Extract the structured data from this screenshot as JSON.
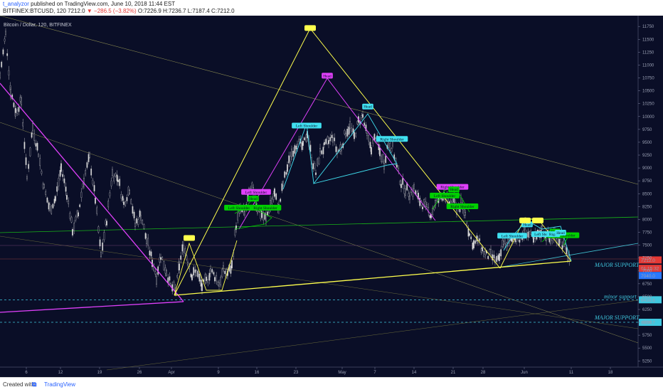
{
  "header": {
    "author": "t_analyzor",
    "published": "published on TradingView.com, June 10, 2018 11:44 EST",
    "symbol": "BITFINEX:BTCUSD, 120",
    "last": "7212.0",
    "change": "−286.5 (−3.82%)",
    "ohlc": "O:7226.9 H:7236.7 L:7187.4 C:7212.0"
  },
  "chart_title": "Bitcoin / Dollar, 120, BITFINEX",
  "footer": {
    "created": "Created with",
    "brand": "TradingView"
  },
  "colors": {
    "background": "#0a0e27",
    "candle": "#d9d9d9",
    "yellow": "#ffff4d",
    "magenta": "#e040fb",
    "cyan": "#40e0f0",
    "green": "#00d000",
    "support_dash": "#40c8e0"
  },
  "icons": [
    "tradingview-logo-icon"
  ],
  "chart_data": {
    "type": "candlestick",
    "title": "Bitcoin / Dollar, 120, BITFINEX",
    "x_ticks": [
      "6",
      "12",
      "19",
      "26",
      "Apr",
      "9",
      "16",
      "23",
      "May",
      "7",
      "14",
      "21",
      "28",
      "Jun",
      "11",
      "18"
    ],
    "y_ticks": [
      11750,
      11500,
      11250,
      11000,
      10750,
      10500,
      10250,
      10000,
      9750,
      9500,
      9250,
      9000,
      8750,
      8500,
      8250,
      8000,
      7750,
      7500,
      7250,
      7000,
      6750,
      6500,
      6250,
      6000,
      5750,
      5500,
      5250
    ],
    "ylim": [
      5130,
      11960
    ],
    "price_path": [
      [
        0,
        10800
      ],
      [
        8,
        11600
      ],
      [
        15,
        10500
      ],
      [
        22,
        10100
      ],
      [
        30,
        10300
      ],
      [
        38,
        8800
      ],
      [
        46,
        9800
      ],
      [
        54,
        9300
      ],
      [
        62,
        8600
      ],
      [
        70,
        8200
      ],
      [
        78,
        8400
      ],
      [
        86,
        9000
      ],
      [
        94,
        8500
      ],
      [
        102,
        7800
      ],
      [
        110,
        8100
      ],
      [
        118,
        8800
      ],
      [
        126,
        9200
      ],
      [
        134,
        8400
      ],
      [
        142,
        7300
      ],
      [
        150,
        8000
      ],
      [
        158,
        8900
      ],
      [
        166,
        8800
      ],
      [
        174,
        8300
      ],
      [
        182,
        8600
      ],
      [
        190,
        7900
      ],
      [
        198,
        8100
      ],
      [
        206,
        7600
      ],
      [
        214,
        7200
      ],
      [
        220,
        6900
      ],
      [
        226,
        7300
      ],
      [
        234,
        7000
      ],
      [
        240,
        6700
      ],
      [
        247,
        6600
      ],
      [
        252,
        7100
      ],
      [
        258,
        7500
      ],
      [
        264,
        7200
      ],
      [
        270,
        6900
      ],
      [
        276,
        7000
      ],
      [
        284,
        6700
      ],
      [
        290,
        6800
      ],
      [
        296,
        7000
      ],
      [
        302,
        6900
      ],
      [
        308,
        6750
      ],
      [
        314,
        7000
      ],
      [
        320,
        6950
      ],
      [
        326,
        7100
      ],
      [
        332,
        7900
      ],
      [
        338,
        8200
      ],
      [
        344,
        8100
      ],
      [
        350,
        8500
      ],
      [
        356,
        8600
      ],
      [
        362,
        8200
      ],
      [
        368,
        8100
      ],
      [
        374,
        8000
      ],
      [
        380,
        8300
      ],
      [
        386,
        8500
      ],
      [
        392,
        8200
      ],
      [
        398,
        8700
      ],
      [
        404,
        9000
      ],
      [
        410,
        9300
      ],
      [
        418,
        9500
      ],
      [
        426,
        9400
      ],
      [
        432,
        9700
      ],
      [
        438,
        9200
      ],
      [
        444,
        8900
      ],
      [
        450,
        9300
      ],
      [
        456,
        9400
      ],
      [
        462,
        9500
      ],
      [
        468,
        9600
      ],
      [
        474,
        9300
      ],
      [
        480,
        9400
      ],
      [
        486,
        9700
      ],
      [
        492,
        9800
      ],
      [
        498,
        9600
      ],
      [
        504,
        9900
      ],
      [
        510,
        10000
      ],
      [
        516,
        9600
      ],
      [
        522,
        9400
      ],
      [
        528,
        9600
      ],
      [
        534,
        9300
      ],
      [
        540,
        9100
      ],
      [
        546,
        9500
      ],
      [
        552,
        9400
      ],
      [
        558,
        9000
      ],
      [
        564,
        8700
      ],
      [
        570,
        8600
      ],
      [
        576,
        8500
      ],
      [
        582,
        8600
      ],
      [
        588,
        8400
      ],
      [
        594,
        8300
      ],
      [
        600,
        8200
      ],
      [
        606,
        8100
      ],
      [
        612,
        8300
      ],
      [
        618,
        8400
      ],
      [
        624,
        8500
      ],
      [
        630,
        8300
      ],
      [
        636,
        8400
      ],
      [
        642,
        8200
      ],
      [
        648,
        8300
      ],
      [
        654,
        8100
      ],
      [
        660,
        7700
      ],
      [
        666,
        7500
      ],
      [
        672,
        7600
      ],
      [
        678,
        7400
      ],
      [
        684,
        7300
      ],
      [
        690,
        7300
      ],
      [
        696,
        7200
      ],
      [
        702,
        7200
      ],
      [
        708,
        7600
      ],
      [
        714,
        7500
      ],
      [
        720,
        7600
      ],
      [
        726,
        7700
      ],
      [
        732,
        7600
      ],
      [
        738,
        7800
      ],
      [
        744,
        7700
      ],
      [
        750,
        7600
      ],
      [
        756,
        7700
      ],
      [
        762,
        7800
      ],
      [
        768,
        7700
      ],
      [
        774,
        7600
      ],
      [
        780,
        7700
      ],
      [
        786,
        7600
      ],
      [
        792,
        7500
      ],
      [
        798,
        7300
      ],
      [
        802,
        7212
      ]
    ],
    "pattern_labels": [
      {
        "text": "Left Shoulder",
        "color": "magenta",
        "x": 360,
        "p": 8520
      },
      {
        "text": "Head",
        "color": "green",
        "x": 356,
        "p": 8390
      },
      {
        "text": "Left Shoulder",
        "color": "green",
        "x": 336,
        "p": 8215
      },
      {
        "text": "Right Shoulder",
        "color": "green",
        "x": 373,
        "p": 8215
      },
      {
        "text": "Left Shoulder",
        "color": "cyan",
        "x": 431,
        "p": 9810
      },
      {
        "text": "Head",
        "color": "magenta",
        "x": 460,
        "p": 10780
      },
      {
        "text": "Head",
        "color": "cyan",
        "x": 517,
        "p": 10180
      },
      {
        "text": "Right Shoulder",
        "color": "cyan",
        "x": 551,
        "p": 9550
      },
      {
        "text": "Right Shoulder",
        "color": "magenta",
        "x": 636,
        "p": 8620
      },
      {
        "text": "Head",
        "color": "green",
        "x": 638,
        "p": 8570
      },
      {
        "text": "Left Shoulder",
        "color": "green",
        "x": 625,
        "p": 8450
      },
      {
        "text": "Right Shoulder",
        "color": "green",
        "x": 650,
        "p": 8240
      },
      {
        "text": "Left Shoulder",
        "color": "cyan",
        "x": 720,
        "p": 7670
      },
      {
        "text": "Head",
        "color": "cyan",
        "x": 741,
        "p": 7890
      },
      {
        "text": "Left Shou",
        "color": "cyan",
        "x": 762,
        "p": 7700
      },
      {
        "text": "Right Shoulder",
        "color": "green",
        "x": 792,
        "p": 7680
      },
      {
        "text": "Head",
        "color": "green",
        "x": 780,
        "p": 7750
      },
      {
        "text": "Right",
        "color": "cyan",
        "x": 778,
        "p": 7700
      },
      {
        "text": "Head",
        "color": "cyan",
        "x": 788,
        "p": 7730
      }
    ],
    "target_labels": [
      {
        "x": 436,
        "p": 11720
      },
      {
        "x": 266,
        "p": 7640
      },
      {
        "x": 738,
        "p": 7980
      },
      {
        "x": 756,
        "p": 7980
      }
    ],
    "support_labels": [
      {
        "text": "MAJOR SUPPORT",
        "p": 7120,
        "x": 836
      },
      {
        "text": "minor support",
        "p": 6505,
        "x": 849
      },
      {
        "text": "MAJOR SUPPORT",
        "p": 6100,
        "x": 836
      }
    ],
    "price_tags": [
      {
        "text": "7212.0",
        "p": 7212,
        "bg": "#e53935",
        "fg": "#ffffff"
      },
      {
        "text": "01:15:32",
        "p": 7050,
        "bg": "#e53935",
        "fg": "#ffffff"
      },
      {
        "text": "7040.0",
        "p": 6910,
        "bg": "#2979ff",
        "fg": "#ffffff"
      },
      {
        "text": "6438.6",
        "p": 6438.6,
        "bg": "#40c8e0",
        "fg": "#0a0e27"
      },
      {
        "text": "6000.7",
        "p": 6000.7,
        "bg": "#40c8e0",
        "fg": "#0a0e27"
      }
    ],
    "support_levels": [
      6438.6,
      6000.7
    ]
  }
}
